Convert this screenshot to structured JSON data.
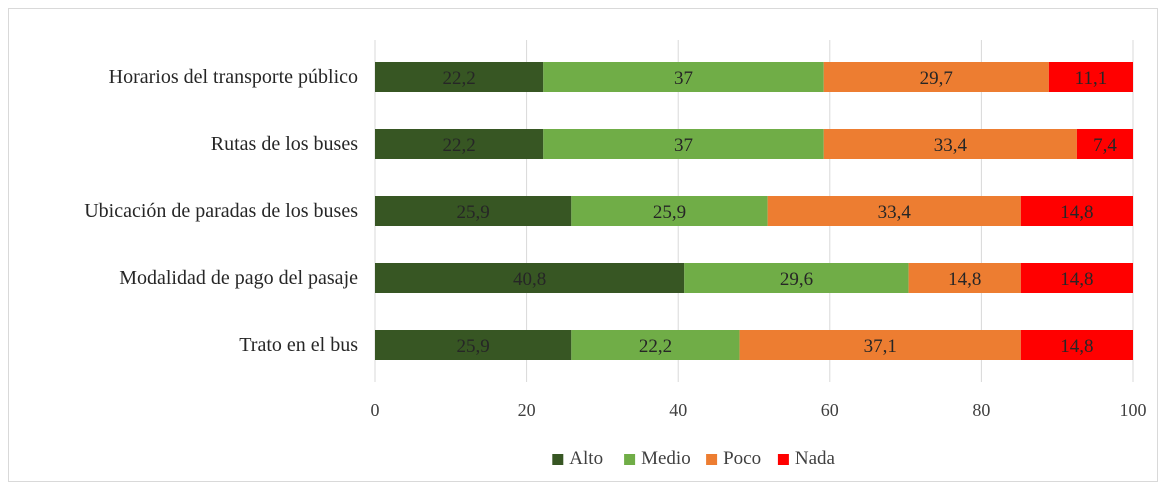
{
  "chart_data": {
    "type": "bar",
    "orientation": "horizontal",
    "stacked": true,
    "title": "",
    "xlabel": "",
    "ylabel": "",
    "xlim": [
      0,
      100
    ],
    "x_ticks": [
      "0",
      "20",
      "40",
      "60",
      "80",
      "100"
    ],
    "grid": "vertical",
    "legend_position": "bottom",
    "categories": [
      "Horarios del transporte público",
      "Rutas de los buses",
      "Ubicación de paradas de los buses",
      "Modalidad de pago del pasaje",
      "Trato en el bus"
    ],
    "series": [
      {
        "name": "Alto",
        "color": "#375623",
        "values": [
          22.2,
          22.2,
          25.9,
          40.8,
          25.9
        ],
        "labels": [
          "22,2",
          "22,2",
          "25,9",
          "40,8",
          "25,9"
        ]
      },
      {
        "name": "Medio",
        "color": "#70ad47",
        "values": [
          37,
          37,
          25.9,
          29.6,
          22.2
        ],
        "labels": [
          "37",
          "37",
          "25,9",
          "29,6",
          "22,2"
        ]
      },
      {
        "name": "Poco",
        "color": "#ed7d31",
        "values": [
          29.7,
          33.4,
          33.4,
          14.8,
          37.1
        ],
        "labels": [
          "29,7",
          "33,4",
          "33,4",
          "14,8",
          "37,1"
        ]
      },
      {
        "name": "Nada",
        "color": "#ff0000",
        "values": [
          11.1,
          7.4,
          14.8,
          14.8,
          14.8
        ],
        "labels": [
          "11,1",
          "7,4",
          "14,8",
          "14,8",
          "14,8"
        ]
      }
    ]
  }
}
